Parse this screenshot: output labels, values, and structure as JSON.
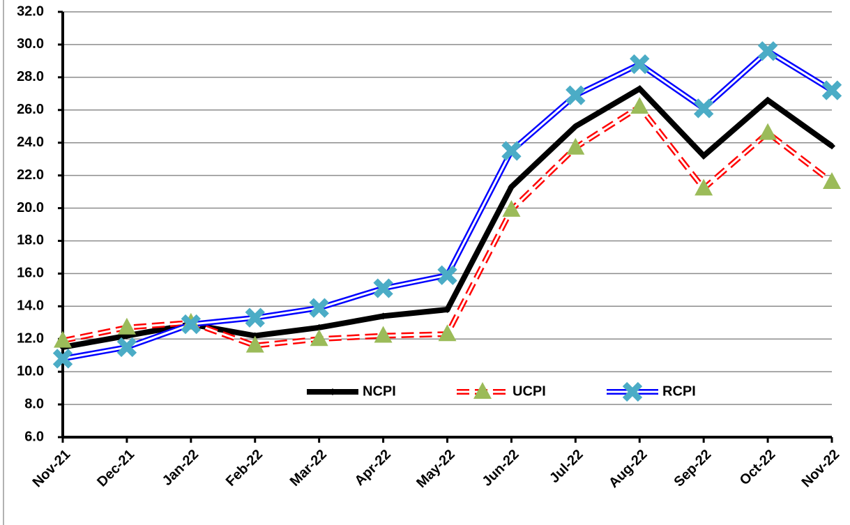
{
  "chart_data": {
    "type": "line",
    "categories": [
      "Nov-21",
      "Dec-21",
      "Jan-22",
      "Feb-22",
      "Mar-22",
      "Apr-22",
      "May-22",
      "Jun-22",
      "Jul-22",
      "Aug-22",
      "Sep-22",
      "Oct-22",
      "Nov-22"
    ],
    "series": [
      {
        "name": "NCPI",
        "color": "#000000",
        "marker_color": "#000000",
        "style": "solid",
        "values": [
          11.5,
          12.2,
          12.9,
          12.2,
          12.7,
          13.4,
          13.8,
          21.3,
          25.0,
          27.3,
          23.2,
          26.6,
          23.8
        ]
      },
      {
        "name": "UCPI",
        "color": "#ff0000",
        "marker_color": "#9bbb59",
        "style": "dashed-double",
        "values": [
          11.9,
          12.7,
          13.0,
          11.6,
          12.0,
          12.2,
          12.3,
          19.9,
          23.7,
          26.2,
          21.2,
          24.6,
          21.6
        ]
      },
      {
        "name": "RCPI",
        "color": "#0000ff",
        "marker_color": "#4bacc6",
        "style": "double",
        "values": [
          10.8,
          11.5,
          12.9,
          13.3,
          13.9,
          15.1,
          15.9,
          23.5,
          26.9,
          28.8,
          26.1,
          29.6,
          27.2
        ]
      }
    ],
    "ylim": [
      6,
      32
    ],
    "yticks": [
      {
        "value": 6,
        "label": "6.0"
      },
      {
        "value": 8,
        "label": "8.0"
      },
      {
        "value": 10,
        "label": "10.0"
      },
      {
        "value": 12,
        "label": "12.0"
      },
      {
        "value": 14,
        "label": "14.0"
      },
      {
        "value": 16,
        "label": "16.0"
      },
      {
        "value": 18,
        "label": "18.0"
      },
      {
        "value": 20,
        "label": "20.0"
      },
      {
        "value": 22,
        "label": "22.0"
      },
      {
        "value": 24,
        "label": "24.0"
      },
      {
        "value": 26,
        "label": "26.0"
      },
      {
        "value": 28,
        "label": "28.0"
      },
      {
        "value": 30,
        "label": "30.0"
      },
      {
        "value": 32,
        "label": "32.0"
      }
    ],
    "grid": true,
    "legend": "lower center"
  }
}
